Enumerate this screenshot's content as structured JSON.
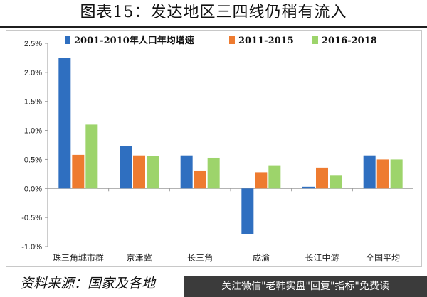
{
  "header": {
    "title": "图表15：发达地区三四线仍稍有流入"
  },
  "footer": {
    "source": "资料来源：国家及各地",
    "watermark": "关注微信\"老韩实盘\"回复\"指标\"免费读"
  },
  "colors": {
    "series": [
      "#2f6fc0",
      "#ee7b30",
      "#9dd46b"
    ]
  },
  "chart_data": {
    "type": "bar",
    "title": "",
    "xlabel": "",
    "ylabel": "",
    "categories": [
      "珠三角城市群",
      "京津冀",
      "长三角",
      "成渝",
      "长江中游",
      "全国平均"
    ],
    "series": [
      {
        "name": "2001-2010年人口年均增速",
        "values": [
          2.25,
          0.73,
          0.57,
          -0.78,
          0.03,
          0.57
        ]
      },
      {
        "name": "2011-2015",
        "values": [
          0.58,
          0.57,
          0.31,
          0.28,
          0.36,
          0.5
        ]
      },
      {
        "name": "2016-2018",
        "values": [
          1.1,
          0.56,
          0.53,
          0.4,
          0.22,
          0.5
        ]
      }
    ],
    "ylim": [
      -1.0,
      2.5
    ],
    "yticks": [
      "-1.0%",
      "-0.5%",
      "0.0%",
      "0.5%",
      "1.0%",
      "1.5%",
      "2.0%",
      "2.5%"
    ],
    "legend_position": "top",
    "grid": false
  }
}
